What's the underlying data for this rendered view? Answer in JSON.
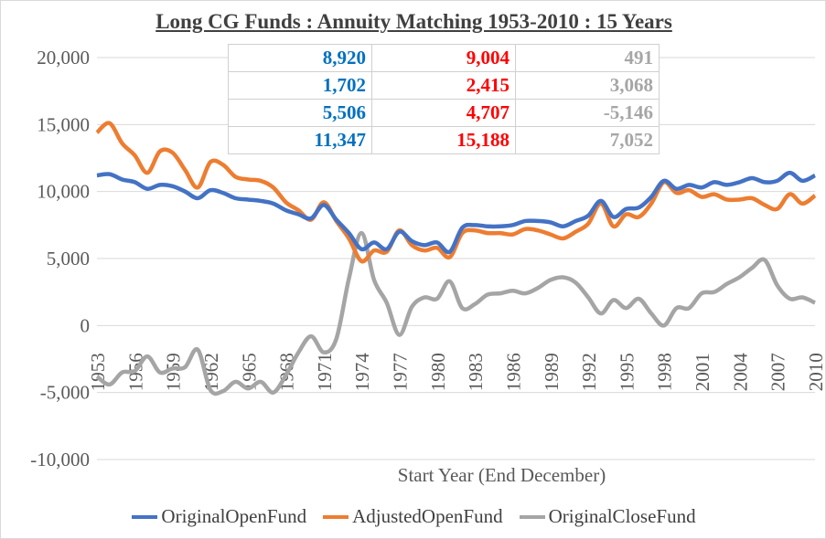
{
  "chart_data": {
    "type": "line",
    "title": "Long CG Funds : Annuity Matching 1953-2010 : 15 Years",
    "xlabel": "Start Year (End December)",
    "ylabel": "",
    "ylim": [
      -10000,
      20000
    ],
    "yticks": [
      -10000,
      -5000,
      0,
      5000,
      10000,
      15000,
      20000
    ],
    "ytick_labels": [
      "-10,000",
      "-5,000",
      "0",
      "5,000",
      "10,000",
      "15,000",
      "20,000"
    ],
    "xticks": [
      1953,
      1956,
      1959,
      1962,
      1965,
      1968,
      1971,
      1974,
      1977,
      1980,
      1983,
      1986,
      1989,
      1992,
      1995,
      1998,
      2001,
      2004,
      2007,
      2010
    ],
    "grid": true,
    "legend": "bottom",
    "x": [
      1953,
      1954,
      1955,
      1956,
      1957,
      1958,
      1959,
      1960,
      1961,
      1962,
      1963,
      1964,
      1965,
      1966,
      1967,
      1968,
      1969,
      1970,
      1971,
      1972,
      1973,
      1974,
      1975,
      1976,
      1977,
      1978,
      1979,
      1980,
      1981,
      1982,
      1983,
      1984,
      1985,
      1986,
      1987,
      1988,
      1989,
      1990,
      1991,
      1992,
      1993,
      1994,
      1995,
      1996,
      1997,
      1998,
      1999,
      2000,
      2001,
      2002,
      2003,
      2004,
      2005,
      2006,
      2007,
      2008,
      2009,
      2010
    ],
    "series": [
      {
        "name": "OriginalOpenFund",
        "color": "#4472C4",
        "values": [
          11200,
          11300,
          10900,
          10700,
          10200,
          10500,
          10400,
          10000,
          9500,
          10100,
          9900,
          9500,
          9400,
          9300,
          9100,
          8600,
          8300,
          8000,
          9000,
          7900,
          6900,
          5700,
          6200,
          5700,
          7000,
          6300,
          6000,
          6200,
          5500,
          7300,
          7500,
          7400,
          7400,
          7500,
          7800,
          7800,
          7700,
          7400,
          7800,
          8200,
          9300,
          8100,
          8700,
          8800,
          9600,
          10800,
          10200,
          10500,
          10300,
          10700,
          10500,
          10700,
          11000,
          10700,
          10800,
          11400,
          10800,
          11200
        ]
      },
      {
        "name": "AdjustedOpenFund",
        "color": "#ED7D31",
        "values": [
          14400,
          15100,
          13600,
          12700,
          11400,
          13000,
          12900,
          11600,
          10300,
          12200,
          12000,
          11100,
          10900,
          10800,
          10300,
          9200,
          8600,
          7900,
          9200,
          7800,
          6500,
          4800,
          5600,
          5500,
          7100,
          6000,
          5600,
          5800,
          5100,
          6900,
          7100,
          6900,
          6900,
          6800,
          7200,
          7100,
          6800,
          6500,
          7000,
          7600,
          9100,
          7400,
          8300,
          8100,
          9100,
          10700,
          9900,
          10100,
          9600,
          9800,
          9400,
          9400,
          9500,
          9000,
          8700,
          9800,
          9100,
          9700
        ]
      },
      {
        "name": "OriginalCloseFund",
        "color": "#A5A5A5",
        "values": [
          -3800,
          -4400,
          -3500,
          -3400,
          -2300,
          -3500,
          -3200,
          -3100,
          -1800,
          -4800,
          -4900,
          -4200,
          -4700,
          -4200,
          -5000,
          -3700,
          -2000,
          -800,
          -2000,
          -1000,
          3500,
          6900,
          3400,
          1700,
          -700,
          1400,
          2100,
          2000,
          3300,
          1300,
          1600,
          2300,
          2400,
          2600,
          2400,
          2800,
          3400,
          3600,
          3200,
          2100,
          900,
          1900,
          1300,
          2000,
          900,
          0,
          1300,
          1300,
          2400,
          2500,
          3100,
          3600,
          4300,
          4900,
          3000,
          2000,
          2100,
          1700
        ]
      }
    ],
    "table": {
      "colors": [
        "#0070C0",
        "#FF0000",
        "#A6A6A6"
      ],
      "rows": [
        [
          "8,920",
          "9,004",
          "491"
        ],
        [
          "1,702",
          "2,415",
          "3,068"
        ],
        [
          "5,506",
          "4,707",
          "-5,146"
        ],
        [
          "11,347",
          "15,188",
          "7,052"
        ]
      ]
    }
  }
}
